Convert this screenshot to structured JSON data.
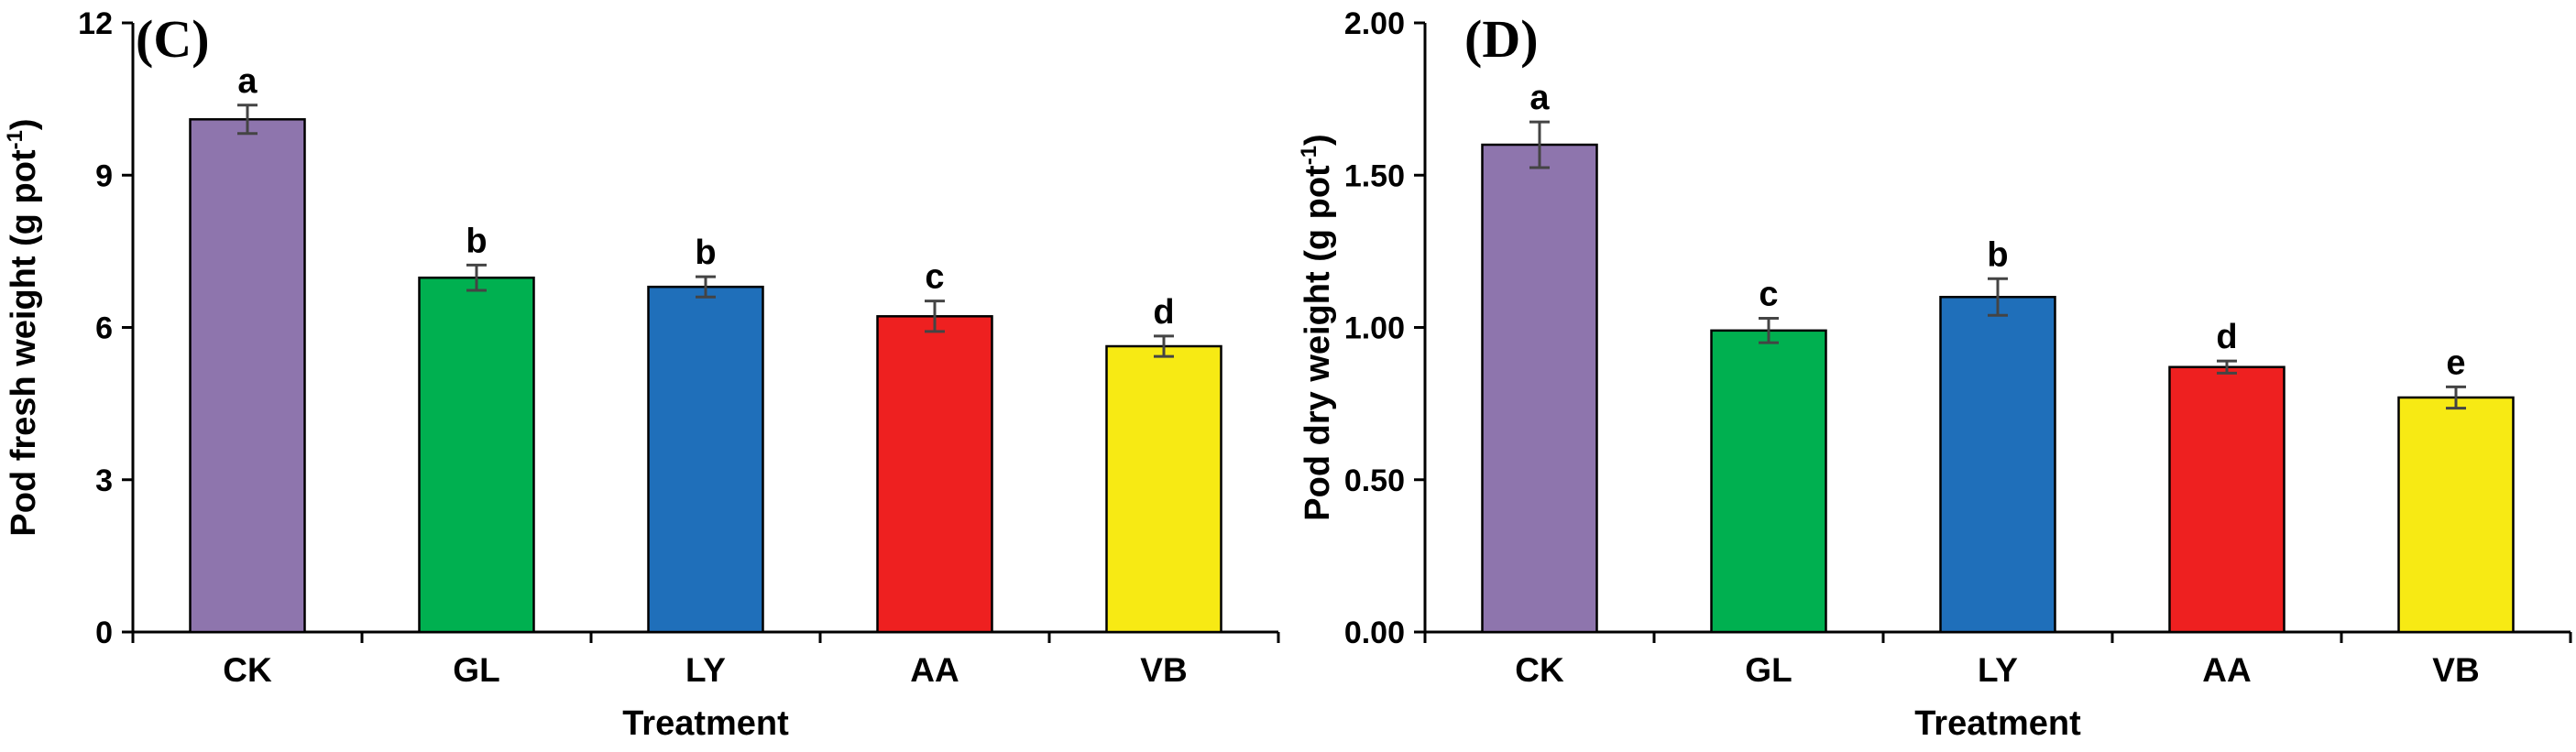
{
  "chart_data": [
    {
      "type": "bar",
      "panel_label": "(C)",
      "categories": [
        "CK",
        "GL",
        "LY",
        "AA",
        "VB"
      ],
      "values": [
        10.1,
        6.98,
        6.8,
        6.22,
        5.63
      ],
      "errors": [
        0.28,
        0.25,
        0.2,
        0.3,
        0.2
      ],
      "significance": [
        "a",
        "b",
        "b",
        "c",
        "d"
      ],
      "colors": [
        "#8e75ad",
        "#00b050",
        "#1f6fba",
        "#ee2020",
        "#f7ea14"
      ],
      "xlabel": "Treatment",
      "ylabel_main": "Pod fresh weight (g pot",
      "ylabel_sup": "-1",
      "ylabel_close": ")",
      "ylim": [
        0,
        12
      ],
      "yticks": [
        "0",
        "3",
        "6",
        "9",
        "12"
      ],
      "tick_values": [
        0,
        3,
        6,
        9,
        12
      ],
      "grid": false
    },
    {
      "type": "bar",
      "panel_label": "(D)",
      "categories": [
        "CK",
        "GL",
        "LY",
        "AA",
        "VB"
      ],
      "values": [
        1.6,
        0.99,
        1.1,
        0.87,
        0.77
      ],
      "errors": [
        0.075,
        0.04,
        0.06,
        0.02,
        0.035
      ],
      "significance": [
        "a",
        "c",
        "b",
        "d",
        "e"
      ],
      "colors": [
        "#8e75ad",
        "#00b050",
        "#1f6fba",
        "#ee2020",
        "#f7ea14"
      ],
      "xlabel": "Treatment",
      "ylabel_main": "Pod dry weight (g pot",
      "ylabel_sup": "-1",
      "ylabel_close": ")",
      "ylim": [
        0,
        2
      ],
      "yticks": [
        "0.00",
        "0.50",
        "1.00",
        "1.50",
        "2.00"
      ],
      "tick_values": [
        0,
        0.5,
        1,
        1.5,
        2
      ],
      "grid": false
    }
  ]
}
